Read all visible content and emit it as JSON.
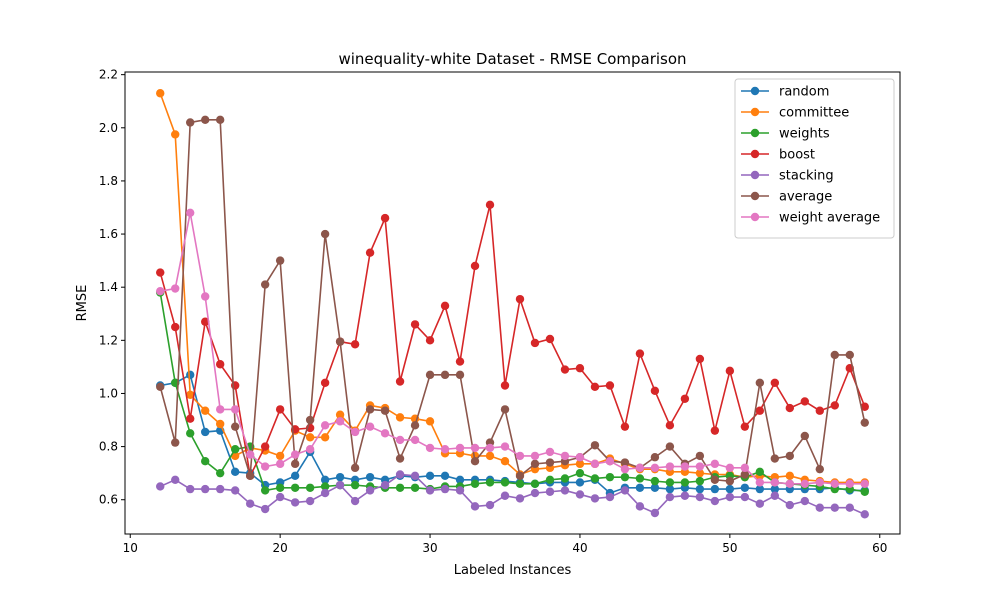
{
  "chart_data": {
    "type": "line",
    "title": "winequality-white Dataset - RMSE Comparison",
    "xlabel": "Labeled Instances",
    "ylabel": "RMSE",
    "xlim": [
      9.65,
      61.35
    ],
    "ylim": [
      0.471,
      2.21
    ],
    "xticks": [
      10,
      20,
      30,
      40,
      50,
      60
    ],
    "yticks": [
      0.6,
      0.8,
      1.0,
      1.2,
      1.4,
      1.6,
      1.8,
      2.0,
      2.2
    ],
    "ytick_labels": [
      "0.6",
      "0.8",
      "1.0",
      "1.2",
      "1.4",
      "1.6",
      "1.8",
      "2.0",
      "2.2"
    ],
    "grid": false,
    "legend_position": "top-right",
    "x": [
      12,
      13,
      14,
      15,
      16,
      17,
      18,
      19,
      20,
      21,
      22,
      23,
      24,
      25,
      26,
      27,
      28,
      29,
      30,
      31,
      32,
      33,
      34,
      35,
      36,
      37,
      38,
      39,
      40,
      41,
      42,
      43,
      44,
      45,
      46,
      47,
      48,
      49,
      50,
      51,
      52,
      53,
      54,
      55,
      56,
      57,
      58,
      59
    ],
    "series": [
      {
        "name": "random",
        "color": "#1f77b4",
        "values": [
          1.03,
          1.04,
          1.07,
          0.855,
          0.86,
          0.705,
          0.7,
          0.655,
          0.665,
          0.69,
          0.78,
          0.675,
          0.685,
          0.675,
          0.685,
          0.675,
          0.69,
          0.685,
          0.69,
          0.69,
          0.675,
          0.675,
          0.675,
          0.67,
          0.665,
          0.66,
          0.665,
          0.665,
          0.665,
          0.675,
          0.625,
          0.645,
          0.645,
          0.645,
          0.64,
          0.645,
          0.64,
          0.64,
          0.64,
          0.645,
          0.64,
          0.64,
          0.64,
          0.64,
          0.64,
          0.645,
          0.635,
          0.635
        ]
      },
      {
        "name": "committee",
        "color": "#ff7f0e",
        "values": [
          2.13,
          1.975,
          0.995,
          0.935,
          0.885,
          0.765,
          0.795,
          0.785,
          0.765,
          0.86,
          0.835,
          0.835,
          0.92,
          0.86,
          0.955,
          0.945,
          0.91,
          0.905,
          0.895,
          0.775,
          0.775,
          0.765,
          0.765,
          0.745,
          0.695,
          0.715,
          0.72,
          0.73,
          0.735,
          0.735,
          0.755,
          0.735,
          0.715,
          0.715,
          0.705,
          0.705,
          0.7,
          0.695,
          0.695,
          0.685,
          0.69,
          0.685,
          0.69,
          0.675,
          0.67,
          0.665,
          0.665,
          0.665
        ]
      },
      {
        "name": "weights",
        "color": "#2ca02c",
        "values": [
          1.38,
          1.04,
          0.85,
          0.745,
          0.7,
          0.79,
          0.8,
          0.635,
          0.645,
          0.645,
          0.645,
          0.65,
          0.655,
          0.655,
          0.65,
          0.645,
          0.645,
          0.645,
          0.64,
          0.65,
          0.65,
          0.66,
          0.665,
          0.665,
          0.66,
          0.66,
          0.675,
          0.68,
          0.7,
          0.68,
          0.685,
          0.685,
          0.68,
          0.67,
          0.665,
          0.665,
          0.67,
          0.685,
          0.69,
          0.685,
          0.705,
          0.665,
          0.66,
          0.655,
          0.65,
          0.64,
          0.64,
          0.63
        ]
      },
      {
        "name": "boost",
        "color": "#d62728",
        "values": [
          1.455,
          1.25,
          0.905,
          1.27,
          1.11,
          1.03,
          0.69,
          0.8,
          0.94,
          0.865,
          0.87,
          1.04,
          1.195,
          1.185,
          1.53,
          1.66,
          1.045,
          1.26,
          1.2,
          1.33,
          1.12,
          1.48,
          1.71,
          1.03,
          1.355,
          1.19,
          1.205,
          1.09,
          1.095,
          1.025,
          1.03,
          0.875,
          1.15,
          1.01,
          0.88,
          0.98,
          1.13,
          0.86,
          1.085,
          0.875,
          0.935,
          1.04,
          0.945,
          0.97,
          0.935,
          0.955,
          1.095,
          0.95
        ]
      },
      {
        "name": "stacking",
        "color": "#9467bd",
        "values": [
          0.65,
          0.675,
          0.64,
          0.64,
          0.64,
          0.635,
          0.585,
          0.565,
          0.61,
          0.59,
          0.595,
          0.625,
          0.655,
          0.595,
          0.635,
          0.655,
          0.695,
          0.69,
          0.635,
          0.64,
          0.635,
          0.575,
          0.58,
          0.615,
          0.605,
          0.625,
          0.63,
          0.635,
          0.62,
          0.605,
          0.61,
          0.635,
          0.575,
          0.55,
          0.61,
          0.615,
          0.61,
          0.595,
          0.61,
          0.61,
          0.585,
          0.615,
          0.58,
          0.595,
          0.57,
          0.57,
          0.57,
          0.545
        ]
      },
      {
        "name": "average",
        "color": "#8c564b",
        "values": [
          1.025,
          0.815,
          2.02,
          2.03,
          2.03,
          0.875,
          0.69,
          1.41,
          1.5,
          0.735,
          0.9,
          1.6,
          1.195,
          0.72,
          0.94,
          0.935,
          0.755,
          0.88,
          1.07,
          1.07,
          1.07,
          0.745,
          0.815,
          0.94,
          0.69,
          0.735,
          0.74,
          0.745,
          0.76,
          0.805,
          0.745,
          0.74,
          0.72,
          0.76,
          0.8,
          0.735,
          0.765,
          0.675,
          0.67,
          0.695,
          1.04,
          0.755,
          0.765,
          0.84,
          0.715,
          1.145,
          1.145,
          0.89
        ]
      },
      {
        "name": "weight average",
        "color": "#e377c2",
        "values": [
          1.385,
          1.395,
          1.68,
          1.365,
          0.94,
          0.94,
          0.77,
          0.725,
          0.735,
          0.77,
          0.79,
          0.88,
          0.895,
          0.855,
          0.875,
          0.85,
          0.825,
          0.825,
          0.795,
          0.79,
          0.795,
          0.795,
          0.795,
          0.8,
          0.765,
          0.765,
          0.78,
          0.765,
          0.76,
          0.735,
          0.745,
          0.715,
          0.72,
          0.72,
          0.725,
          0.725,
          0.725,
          0.735,
          0.72,
          0.72,
          0.665,
          0.665,
          0.66,
          0.66,
          0.665,
          0.66,
          0.66,
          0.66
        ]
      }
    ]
  }
}
